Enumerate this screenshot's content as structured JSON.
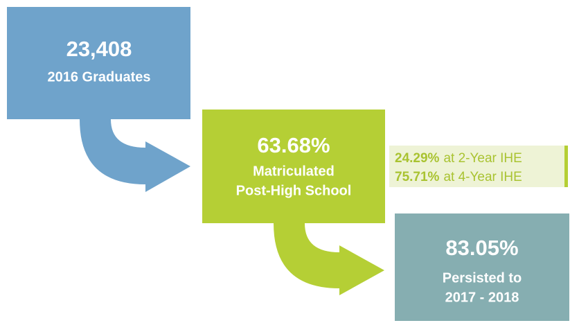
{
  "nodes": [
    {
      "value": "23,408",
      "label": [
        "2016 Graduates"
      ]
    },
    {
      "value": "63.68%",
      "label": [
        "Matriculated",
        "Post-High School"
      ]
    },
    {
      "value": "83.05%",
      "label": [
        "Persisted to",
        "2017 - 2018"
      ]
    }
  ],
  "breakdown": [
    {
      "value": "24.29%",
      "label": "at 2-Year IHE"
    },
    {
      "value": "75.71%",
      "label": "at 4-Year IHE"
    }
  ]
}
